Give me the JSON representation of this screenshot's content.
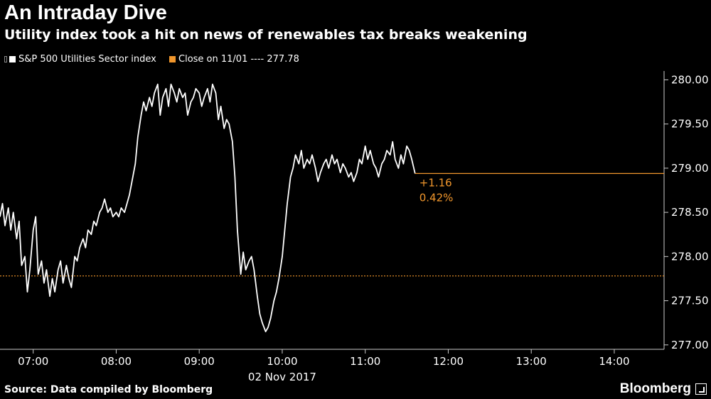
{
  "header": {
    "title": "An Intraday Dive",
    "subtitle": "Utility index took a hit on news of renewables tax breaks weakening"
  },
  "legend": {
    "series_label": "S&P 500 Utilities Sector index",
    "close_label": "Close on 11/01 ---- 277.78"
  },
  "footer": {
    "source": "Source: Data compiled by Bloomberg",
    "brand": "Bloomberg"
  },
  "annotation": {
    "change": "+1.16",
    "percent": "0.42%"
  },
  "colors": {
    "background": "#000000",
    "series": "#ffffff",
    "reference": "#f0962c",
    "axis": "#cccccc"
  },
  "chart_data": {
    "type": "line",
    "title": "An Intraday Dive",
    "xlabel": "02 Nov 2017",
    "ylabel": "",
    "x_unit": "hours",
    "x_tick_values": [
      7,
      8,
      9,
      10,
      11,
      12,
      13,
      14
    ],
    "x_tick_labels": [
      "07:00",
      "08:00",
      "09:00",
      "10:00",
      "11:00",
      "12:00",
      "13:00",
      "14:00"
    ],
    "xlim": [
      6.6,
      14.6
    ],
    "ylim": [
      276.95,
      280.1
    ],
    "y_tick_values": [
      277.0,
      277.5,
      278.0,
      278.5,
      279.0,
      279.5,
      280.0
    ],
    "y_tick_labels": [
      "277.00",
      "277.50",
      "278.00",
      "278.50",
      "279.00",
      "279.50",
      "280.00"
    ],
    "grid": false,
    "legend_position": "top-left",
    "reference_line": {
      "name": "Close on 11/01",
      "value": 277.78
    },
    "last_value_line": {
      "value": 278.94
    },
    "series": [
      {
        "name": "S&P 500 Utilities Sector index",
        "x": [
          6.6,
          6.63,
          6.66,
          6.7,
          6.73,
          6.76,
          6.8,
          6.83,
          6.86,
          6.9,
          6.93,
          6.96,
          7.0,
          7.03,
          7.06,
          7.1,
          7.13,
          7.16,
          7.2,
          7.23,
          7.26,
          7.3,
          7.33,
          7.36,
          7.4,
          7.43,
          7.46,
          7.5,
          7.53,
          7.56,
          7.6,
          7.63,
          7.66,
          7.7,
          7.73,
          7.76,
          7.8,
          7.83,
          7.86,
          7.9,
          7.93,
          7.96,
          8.0,
          8.03,
          8.06,
          8.1,
          8.13,
          8.16,
          8.2,
          8.23,
          8.26,
          8.3,
          8.33,
          8.36,
          8.4,
          8.43,
          8.46,
          8.5,
          8.53,
          8.56,
          8.6,
          8.63,
          8.66,
          8.7,
          8.73,
          8.76,
          8.8,
          8.83,
          8.86,
          8.9,
          8.93,
          8.96,
          9.0,
          9.03,
          9.06,
          9.1,
          9.13,
          9.16,
          9.2,
          9.23,
          9.26,
          9.3,
          9.33,
          9.36,
          9.4,
          9.43,
          9.46,
          9.5,
          9.53,
          9.56,
          9.6,
          9.63,
          9.66,
          9.7,
          9.73,
          9.76,
          9.8,
          9.83,
          9.86,
          9.9,
          9.93,
          9.96,
          10.0,
          10.03,
          10.06,
          10.1,
          10.13,
          10.16,
          10.2,
          10.23,
          10.26,
          10.3,
          10.33,
          10.36,
          10.4,
          10.43,
          10.46,
          10.5,
          10.53,
          10.56,
          10.6,
          10.63,
          10.66,
          10.7,
          10.73,
          10.76,
          10.8,
          10.83,
          10.86,
          10.9,
          10.93,
          10.96,
          11.0,
          11.03,
          11.06,
          11.1,
          11.13,
          11.16,
          11.2,
          11.23,
          11.26,
          11.3,
          11.33,
          11.36,
          11.4,
          11.43,
          11.46,
          11.5,
          11.53,
          11.56,
          11.6
        ],
        "y": [
          278.45,
          278.6,
          278.35,
          278.55,
          278.3,
          278.5,
          278.2,
          278.4,
          277.9,
          278.0,
          277.6,
          277.85,
          278.3,
          278.45,
          277.8,
          277.95,
          277.7,
          277.85,
          277.55,
          277.75,
          277.6,
          277.85,
          277.95,
          277.7,
          277.9,
          277.75,
          277.65,
          278.0,
          277.95,
          278.1,
          278.2,
          278.1,
          278.3,
          278.25,
          278.4,
          278.35,
          278.5,
          278.55,
          278.65,
          278.5,
          278.55,
          278.45,
          278.5,
          278.45,
          278.55,
          278.5,
          278.6,
          278.7,
          278.9,
          279.05,
          279.35,
          279.6,
          279.75,
          279.65,
          279.8,
          279.7,
          279.85,
          279.95,
          279.6,
          279.8,
          279.9,
          279.7,
          279.95,
          279.85,
          279.75,
          279.9,
          279.8,
          279.85,
          279.6,
          279.75,
          279.8,
          279.9,
          279.85,
          279.7,
          279.8,
          279.9,
          279.75,
          279.95,
          279.85,
          279.55,
          279.7,
          279.45,
          279.55,
          279.5,
          279.3,
          278.9,
          278.3,
          277.8,
          278.05,
          277.85,
          277.95,
          278.0,
          277.85,
          277.55,
          277.35,
          277.25,
          277.15,
          277.2,
          277.3,
          277.5,
          277.6,
          277.75,
          278.0,
          278.3,
          278.6,
          278.9,
          279.0,
          279.15,
          279.05,
          279.2,
          279.0,
          279.1,
          279.05,
          279.15,
          279.0,
          278.85,
          278.95,
          279.05,
          279.1,
          279.0,
          279.15,
          279.05,
          279.1,
          278.95,
          279.05,
          279.0,
          278.9,
          278.95,
          278.85,
          278.95,
          279.1,
          279.05,
          279.25,
          279.1,
          279.2,
          279.05,
          279.0,
          278.9,
          279.05,
          279.1,
          279.2,
          279.15,
          279.3,
          279.1,
          279.0,
          279.15,
          279.05,
          279.25,
          279.2,
          279.1,
          278.94
        ]
      }
    ]
  }
}
